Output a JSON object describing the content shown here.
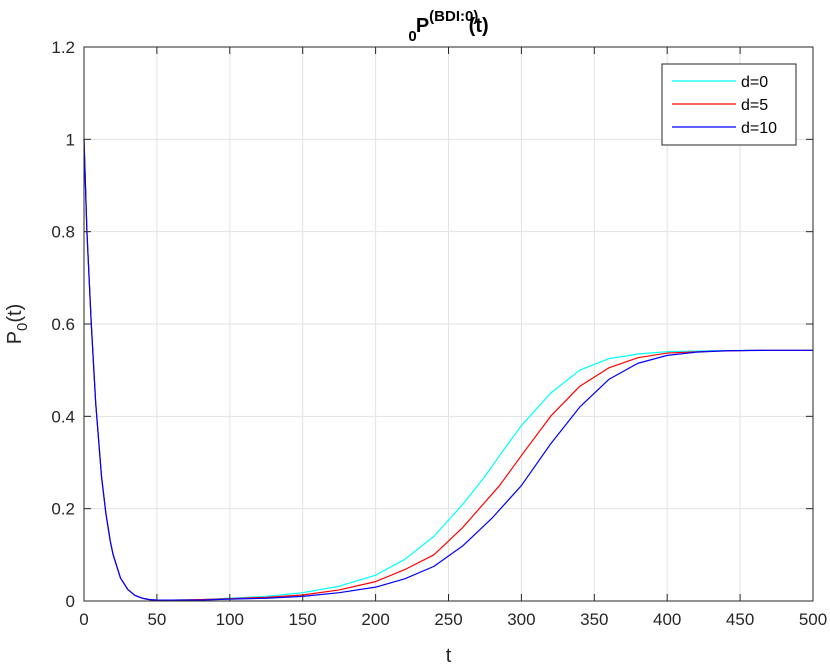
{
  "chart_data": {
    "type": "line",
    "title": {
      "base": "P",
      "superscript": "(BDI:0)",
      "subscript": "0",
      "suffix": "(t)"
    },
    "xlabel": "t",
    "ylabel": {
      "base": "P",
      "subscript": "0",
      "suffix": "(t)"
    },
    "xlim": [
      0,
      500
    ],
    "ylim": [
      0,
      1.2
    ],
    "xticks": [
      "0",
      "50",
      "100",
      "150",
      "200",
      "250",
      "300",
      "350",
      "400",
      "450",
      "500"
    ],
    "yticks": [
      "0",
      "0.2",
      "0.4",
      "0.6",
      "0.8",
      "1",
      "1.2"
    ],
    "grid": true,
    "legend_position": "top-right",
    "series": [
      {
        "name": "d=0",
        "color": "#00FFFF",
        "x": [
          0,
          2,
          5,
          8,
          10,
          12,
          15,
          18,
          20,
          25,
          30,
          35,
          40,
          45,
          50,
          60,
          80,
          100,
          125,
          150,
          175,
          200,
          220,
          240,
          260,
          275,
          285,
          300,
          320,
          340,
          360,
          380,
          400,
          430,
          460,
          500
        ],
        "y": [
          1.0,
          0.8,
          0.6,
          0.43,
          0.35,
          0.27,
          0.19,
          0.13,
          0.1,
          0.05,
          0.025,
          0.012,
          0.006,
          0.003,
          0.002,
          0.002,
          0.003,
          0.006,
          0.01,
          0.018,
          0.032,
          0.056,
          0.09,
          0.14,
          0.21,
          0.27,
          0.315,
          0.38,
          0.45,
          0.5,
          0.525,
          0.535,
          0.54,
          0.542,
          0.543,
          0.543
        ]
      },
      {
        "name": "d=5",
        "color": "#FF0000",
        "x": [
          0,
          2,
          5,
          8,
          10,
          12,
          15,
          18,
          20,
          25,
          30,
          35,
          40,
          45,
          50,
          60,
          80,
          100,
          125,
          150,
          175,
          200,
          220,
          240,
          260,
          285,
          300,
          320,
          340,
          360,
          380,
          400,
          430,
          460,
          500
        ],
        "y": [
          1.0,
          0.8,
          0.6,
          0.43,
          0.35,
          0.27,
          0.19,
          0.13,
          0.1,
          0.05,
          0.025,
          0.012,
          0.006,
          0.003,
          0.002,
          0.002,
          0.003,
          0.005,
          0.008,
          0.013,
          0.024,
          0.042,
          0.068,
          0.1,
          0.16,
          0.25,
          0.315,
          0.4,
          0.465,
          0.505,
          0.527,
          0.537,
          0.541,
          0.543,
          0.543
        ]
      },
      {
        "name": "d=10",
        "color": "#0000FF",
        "x": [
          0,
          2,
          5,
          8,
          10,
          12,
          15,
          18,
          20,
          25,
          30,
          35,
          40,
          45,
          50,
          60,
          80,
          100,
          125,
          150,
          175,
          200,
          220,
          240,
          260,
          280,
          300,
          320,
          340,
          360,
          380,
          400,
          420,
          440,
          470,
          500
        ],
        "y": [
          1.0,
          0.8,
          0.6,
          0.43,
          0.35,
          0.27,
          0.19,
          0.13,
          0.1,
          0.05,
          0.025,
          0.012,
          0.006,
          0.003,
          0.002,
          0.002,
          0.002,
          0.004,
          0.006,
          0.01,
          0.018,
          0.03,
          0.048,
          0.075,
          0.12,
          0.18,
          0.25,
          0.34,
          0.42,
          0.48,
          0.515,
          0.532,
          0.539,
          0.542,
          0.543,
          0.543
        ]
      }
    ]
  }
}
